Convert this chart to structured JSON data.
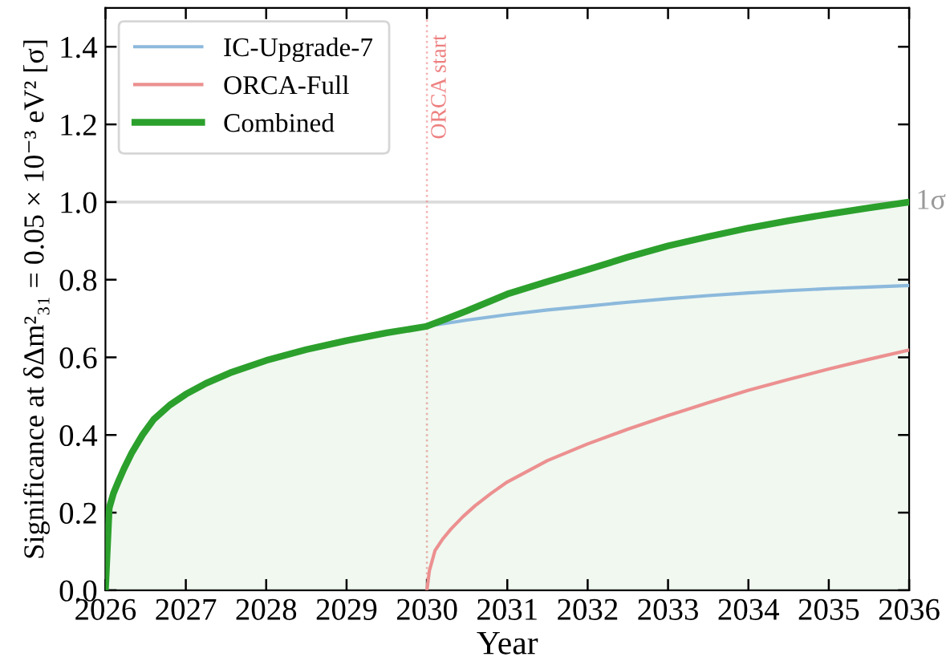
{
  "chart_data": {
    "type": "line",
    "xlabel": "Year",
    "ylabel": "Significance at δΔm²₃₁ = 0.05 × 10⁻³ eV² [σ]",
    "xlim": [
      2026,
      2036
    ],
    "ylim": [
      0,
      1.5
    ],
    "xticks": [
      2026,
      2027,
      2028,
      2029,
      2030,
      2031,
      2032,
      2033,
      2034,
      2035,
      2036
    ],
    "yticks": [
      {
        "value": 0,
        "label": "0.0"
      },
      0.2,
      0.4,
      0.6,
      0.8,
      {
        "value": 1,
        "label": "1.0"
      },
      1.2,
      1.4
    ],
    "series": [
      {
        "name": "IC-Upgrade-7",
        "color": "#8cb9dc",
        "x": [
          2030,
          2030.5,
          2031,
          2031.5,
          2032,
          2032.5,
          2033,
          2033.5,
          2034,
          2034.5,
          2035,
          2035.5,
          2036
        ],
        "values": [
          0.68,
          0.696,
          0.71,
          0.722,
          0.732,
          0.742,
          0.751,
          0.759,
          0.766,
          0.772,
          0.777,
          0.781,
          0.785
        ]
      },
      {
        "name": "ORCA-Full",
        "color": "#ec9090",
        "x": [
          2030,
          2030.03,
          2030.1,
          2030.2,
          2030.3,
          2030.45,
          2030.6,
          2030.8,
          2031,
          2031.5,
          2032,
          2032.5,
          2033,
          2033.5,
          2034,
          2034.5,
          2035,
          2035.5,
          2036
        ],
        "values": [
          0,
          0.05,
          0.102,
          0.133,
          0.158,
          0.19,
          0.218,
          0.25,
          0.279,
          0.334,
          0.377,
          0.415,
          0.45,
          0.483,
          0.515,
          0.543,
          0.57,
          0.595,
          0.619
        ]
      },
      {
        "name": "Combined",
        "type": "area",
        "color": "#2ca02c",
        "x": [
          2026,
          2026.047,
          2026.1,
          2026.16,
          2026.23,
          2026.33,
          2026.46,
          2026.6,
          2026.8,
          2027,
          2027.25,
          2027.55,
          2028,
          2028.5,
          2029,
          2029.5,
          2030,
          2030.25,
          2030.5,
          2031,
          2031.5,
          2032,
          2032.5,
          2033,
          2033.5,
          2034,
          2034.5,
          2035,
          2035.5,
          2036
        ],
        "values": [
          0,
          0.212,
          0.25,
          0.28,
          0.313,
          0.355,
          0.4,
          0.44,
          0.477,
          0.505,
          0.533,
          0.56,
          0.592,
          0.62,
          0.643,
          0.663,
          0.68,
          0.7,
          0.72,
          0.763,
          0.795,
          0.826,
          0.858,
          0.887,
          0.911,
          0.933,
          0.952,
          0.969,
          0.985,
          1.0
        ]
      }
    ],
    "ref_lines": [
      {
        "axis": "y",
        "value": 1,
        "label": "1σ",
        "color": "#999999"
      },
      {
        "axis": "x",
        "value": 2030,
        "label": "ORCA start",
        "color": "#ee8080",
        "line_style": "dotted"
      }
    ],
    "legend": "top left"
  }
}
